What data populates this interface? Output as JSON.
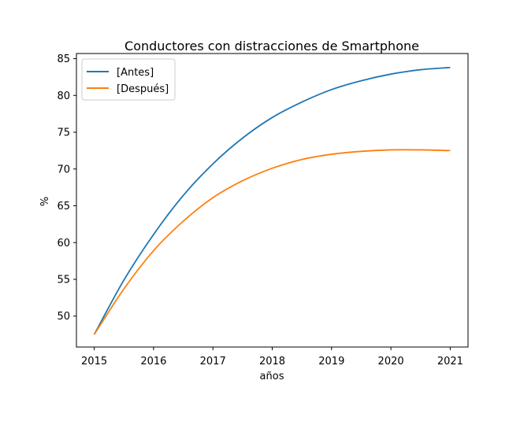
{
  "chart_data": {
    "type": "line",
    "title": "Conductores con distracciones de Smartphone",
    "xlabel": "años",
    "ylabel": "%",
    "xlim": [
      2014.7,
      2021.3
    ],
    "ylim": [
      45.8,
      85.7
    ],
    "xticks": [
      2015,
      2016,
      2017,
      2018,
      2019,
      2020,
      2021
    ],
    "yticks": [
      50,
      55,
      60,
      65,
      70,
      75,
      80,
      85
    ],
    "grid": false,
    "legend_position": "top-left",
    "x": [
      2015,
      2015.5,
      2016,
      2016.5,
      2017,
      2017.5,
      2018,
      2018.5,
      2019,
      2019.5,
      2020,
      2020.5,
      2021
    ],
    "series": [
      {
        "name": "[Antes]",
        "color": "#1f77b4",
        "values": [
          47.5,
          54.9,
          61.1,
          66.4,
          70.7,
          74.2,
          77.0,
          79.1,
          80.8,
          82.0,
          82.9,
          83.5,
          83.8
        ]
      },
      {
        "name": "[Después]",
        "color": "#ff7f0e",
        "values": [
          47.5,
          53.7,
          58.9,
          62.9,
          66.1,
          68.4,
          70.1,
          71.3,
          72.0,
          72.4,
          72.6,
          72.6,
          72.5
        ]
      }
    ]
  }
}
